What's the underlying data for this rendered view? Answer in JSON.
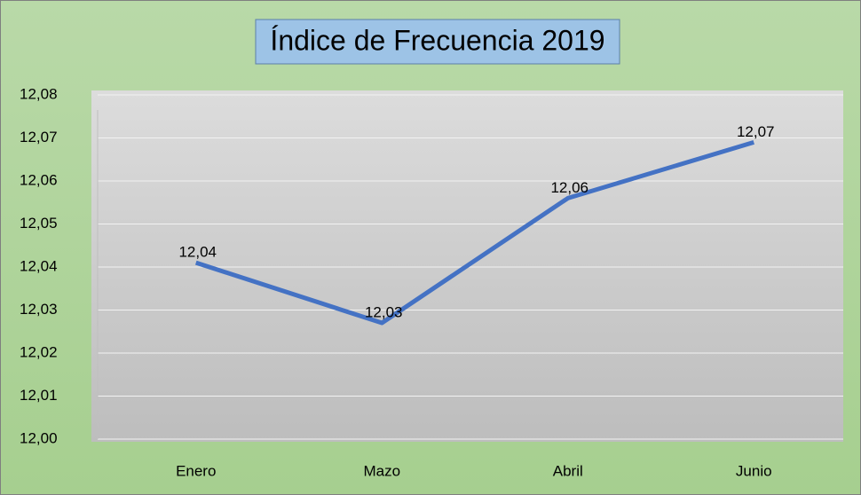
{
  "chart_data": {
    "type": "line",
    "title": "Índice de Frecuencia 2019",
    "categories": [
      "Enero",
      "Mazo",
      "Abril",
      "Junio"
    ],
    "series": [
      {
        "name": "Índice de Frecuencia",
        "color": "#4472c4",
        "values": [
          12.041,
          12.027,
          12.056,
          12.069
        ],
        "value_labels": [
          "12,04",
          "12,03",
          "12,06",
          "12,07"
        ]
      }
    ],
    "ylim": [
      12.0,
      12.08
    ],
    "yticks": [
      {
        "value": 12.0,
        "label": "12,00"
      },
      {
        "value": 12.01,
        "label": "12,01"
      },
      {
        "value": 12.02,
        "label": "12,02"
      },
      {
        "value": 12.03,
        "label": "12,03"
      },
      {
        "value": 12.04,
        "label": "12,04"
      },
      {
        "value": 12.05,
        "label": "12,05"
      },
      {
        "value": 12.06,
        "label": "12,06"
      },
      {
        "value": 12.07,
        "label": "12,07"
      },
      {
        "value": 12.08,
        "label": "12,08"
      }
    ],
    "grid": true
  }
}
